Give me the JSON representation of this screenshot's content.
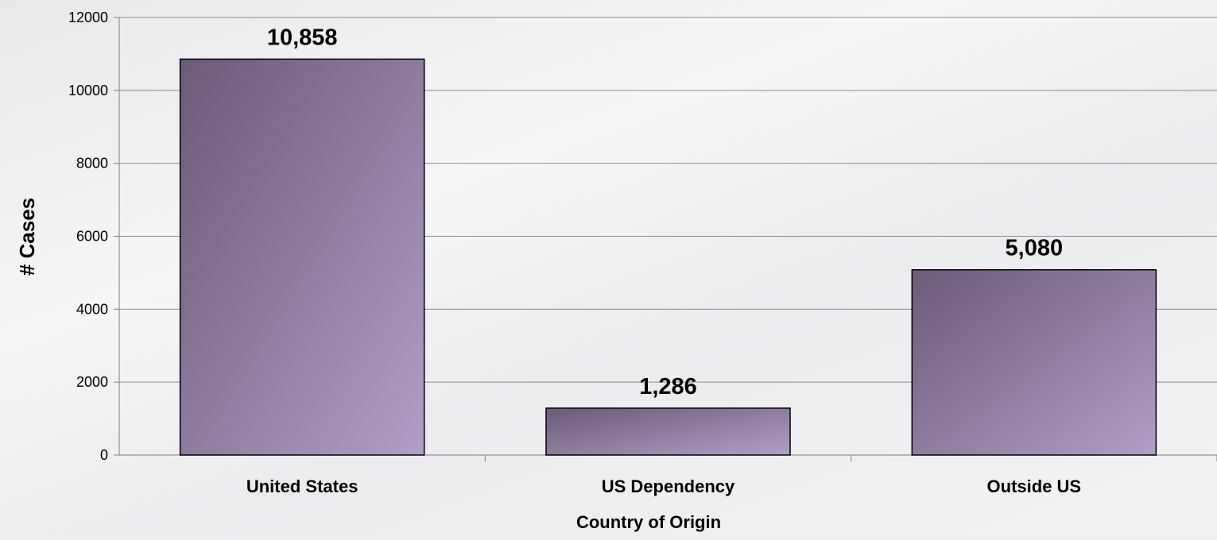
{
  "chart_data": {
    "type": "bar",
    "categories": [
      "United States",
      "US Dependency",
      "Outside US"
    ],
    "values": [
      10858,
      1286,
      5080
    ],
    "data_labels": [
      "10,858",
      "1,286",
      "5,080"
    ],
    "title": "",
    "xlabel": "Country of Origin",
    "ylabel": "# Cases",
    "ylim": [
      0,
      12000
    ],
    "yticks": [
      0,
      2000,
      4000,
      6000,
      8000,
      10000,
      12000
    ],
    "grid": true,
    "legend": "none"
  },
  "colors": {
    "bar_dark": "#6b5a78",
    "bar_light": "#b29ec6",
    "bar_border": "#000000",
    "gridline": "#8c8c8c",
    "axis": "#7f7f7f"
  }
}
